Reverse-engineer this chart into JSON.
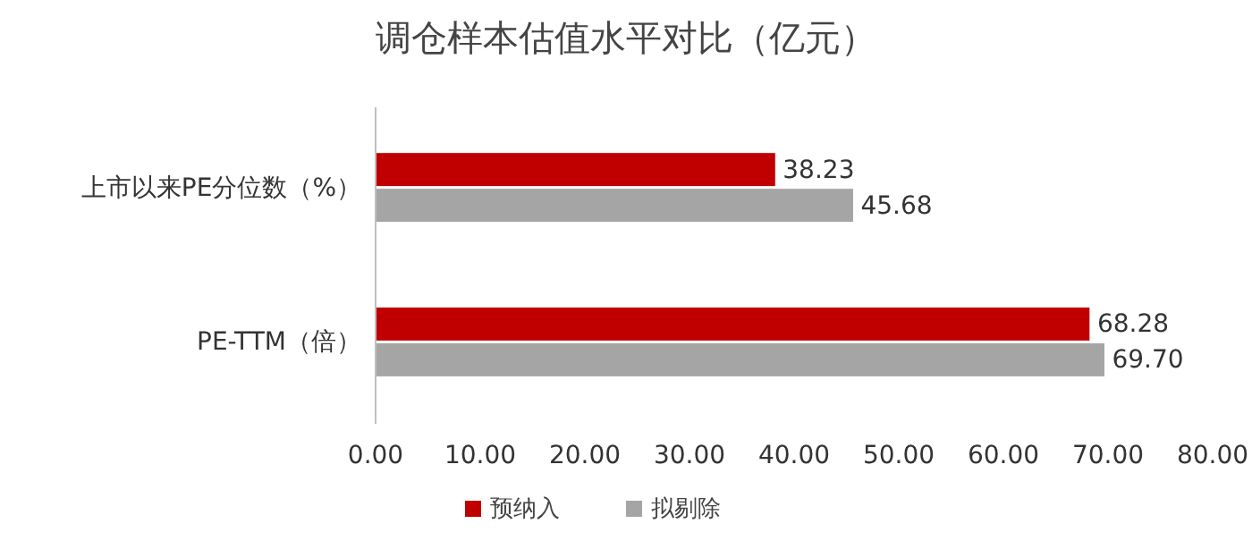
{
  "chart_data": {
    "type": "bar",
    "orientation": "horizontal",
    "title": "调仓样本估值水平对比（亿元）",
    "categories": [
      "上市以来PE分位数（%）",
      "PE-TTM（倍）"
    ],
    "series": [
      {
        "name": "预纳入",
        "color": "#c00000",
        "values": [
          38.23,
          68.28
        ],
        "value_labels": [
          "38.23",
          "68.28"
        ]
      },
      {
        "name": "拟剔除",
        "color": "#a5a5a5",
        "values": [
          45.68,
          69.7
        ],
        "value_labels": [
          "45.68",
          "69.70"
        ]
      }
    ],
    "xlim": [
      0,
      80
    ],
    "xticks": [
      {
        "value": 0,
        "label": "0.00"
      },
      {
        "value": 10,
        "label": "10.00"
      },
      {
        "value": 20,
        "label": "20.00"
      },
      {
        "value": 30,
        "label": "30.00"
      },
      {
        "value": 40,
        "label": "40.00"
      },
      {
        "value": 50,
        "label": "50.00"
      },
      {
        "value": 60,
        "label": "60.00"
      },
      {
        "value": 70,
        "label": "70.00"
      },
      {
        "value": 80,
        "label": "80.00"
      }
    ],
    "grid": false,
    "legend": "bottom"
  }
}
